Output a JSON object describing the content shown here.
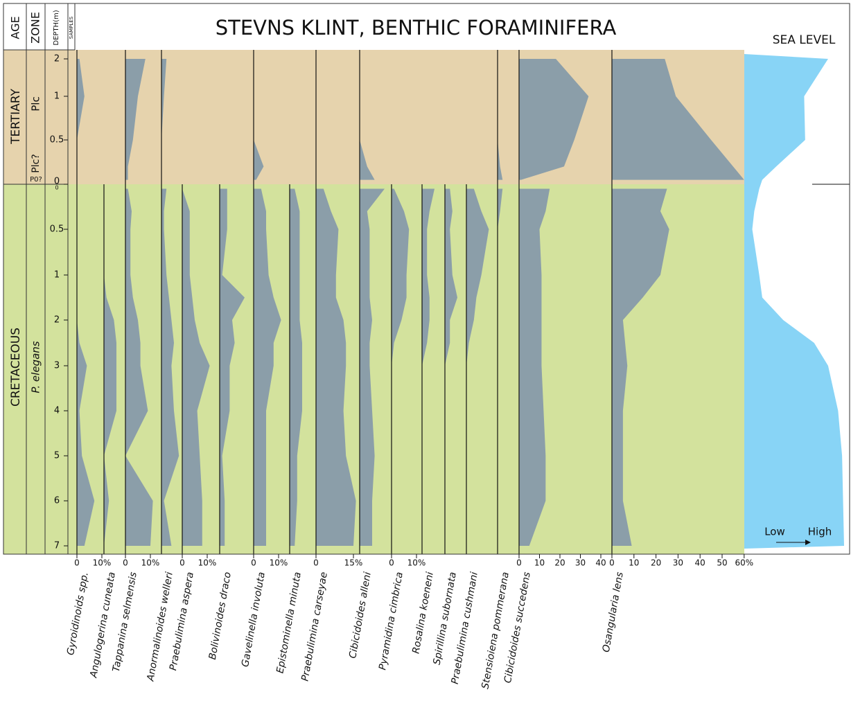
{
  "chart_data": {
    "type": "range_chart",
    "title": "STEVNS KLINT, BENTHIC FORAMINIFERA",
    "headers": {
      "age": "AGE",
      "zone": "ZONE",
      "depth": "DEPTH(m)",
      "samples": "SAMPLES"
    },
    "ages": [
      "TERTIARY",
      "CRETACEOUS"
    ],
    "zones": [
      "Plc",
      "Plc?",
      "P0?",
      "P. elegans"
    ],
    "colors": {
      "tertiary": "#e6d3ad",
      "cretaceous": "#d3e29d",
      "taxa": "#8b9ea9",
      "sea_level": "#88d4f6"
    },
    "tertiary": {
      "yticks": [
        2,
        1,
        0.5,
        0
      ],
      "samples": [
        2,
        1,
        0.5,
        0.2,
        0.05
      ]
    },
    "cretaceous": {
      "yticks": [
        0,
        0.5,
        1,
        2,
        3,
        4,
        5,
        6,
        7
      ],
      "samples": [
        0.05,
        0.3,
        0.5,
        1,
        1.5,
        2,
        2.5,
        3,
        4,
        5,
        6,
        7
      ]
    },
    "series": [
      {
        "name": "Gyroidinoids spp.",
        "tertiary_values": [
          1,
          3,
          0,
          0,
          0
        ],
        "cretaceous_values": [
          0,
          0,
          0,
          0,
          0,
          0,
          1,
          4,
          1,
          2,
          7,
          3
        ],
        "xticks": [
          0,
          {
            "value": 10,
            "label": "10%"
          }
        ]
      },
      {
        "name": "Angulogerina cuneata",
        "cretaceous_values": [
          0,
          0,
          0,
          0,
          1,
          4,
          5,
          5,
          5,
          0,
          2,
          0
        ]
      },
      {
        "name": "Tappanina selmensis",
        "tertiary_values": [
          8,
          5,
          3,
          1,
          1
        ],
        "cretaceous_values": [
          1,
          2.5,
          2,
          2,
          3,
          5,
          6,
          6,
          9,
          0,
          11,
          10
        ],
        "xticks": [
          0,
          {
            "value": 10,
            "label": "10%"
          }
        ]
      },
      {
        "name": "Anormalinoides welleri",
        "tertiary_values": [
          2,
          1,
          0,
          0,
          0
        ],
        "cretaceous_values": [
          2,
          1,
          1,
          2,
          3,
          4,
          5,
          4,
          5,
          7,
          1,
          4
        ]
      },
      {
        "name": "Praebulimina aspera",
        "cretaceous_values": [
          0,
          3,
          3,
          3,
          4,
          5,
          7,
          11,
          6,
          7,
          8,
          8
        ],
        "xticks": [
          0,
          {
            "value": 10,
            "label": "10%"
          }
        ]
      },
      {
        "name": "Bolivinoides draco",
        "cretaceous_values": [
          3,
          3,
          3,
          1,
          10,
          5,
          6,
          4,
          4,
          1,
          2,
          2
        ]
      },
      {
        "name": "Gavelinella involuta",
        "tertiary_values": [
          0,
          0,
          0,
          4,
          1
        ],
        "cretaceous_values": [
          3,
          5,
          5,
          6,
          8,
          11,
          8,
          8,
          5,
          5,
          5,
          5
        ],
        "xticks": [
          0,
          {
            "value": 10,
            "label": "10%"
          }
        ]
      },
      {
        "name": "Epistominella minuta",
        "cretaceous_values": [
          2,
          4,
          4,
          4,
          4,
          4,
          5,
          5,
          5,
          3,
          3,
          2
        ]
      },
      {
        "name": "Praebulimina carseyae",
        "tertiary_values": [
          0,
          0,
          0,
          0,
          0
        ],
        "cretaceous_values": [
          3,
          6,
          9,
          8,
          8,
          11,
          12,
          12,
          11,
          12,
          16,
          15
        ],
        "xticks": [
          0,
          {
            "value": 15,
            "label": "15%"
          }
        ]
      },
      {
        "name": "Cibicidoides alleni",
        "tertiary_values": [
          0,
          0,
          0,
          3,
          6
        ],
        "cretaceous_values": [
          10,
          3,
          4,
          4,
          4,
          5,
          4,
          4,
          5,
          6,
          5,
          5
        ]
      },
      {
        "name": "Pyramidina cimbrica",
        "cretaceous_values": [
          1,
          5,
          7,
          6,
          6,
          4,
          1,
          0,
          0,
          0,
          0,
          0
        ],
        "xticks": [
          0,
          {
            "value": 10,
            "label": "10%"
          }
        ]
      },
      {
        "name": "Rosalina koeneni",
        "cretaceous_values": [
          5,
          3,
          2,
          2,
          3,
          3,
          2,
          0,
          0,
          0,
          0,
          0
        ]
      },
      {
        "name": "Spirillina subornata",
        "cretaceous_values": [
          2,
          3,
          2,
          3,
          5,
          2,
          2,
          0,
          0,
          0,
          0,
          0
        ]
      },
      {
        "name": "Praebulimina cushmani",
        "cretaceous_values": [
          3,
          6,
          9,
          6,
          4,
          3,
          1,
          0,
          0,
          0,
          0,
          0
        ]
      },
      {
        "name": "Stensioiena pommerana",
        "tertiary_values": [
          0,
          0,
          0,
          1,
          2
        ],
        "cretaceous_values": [
          2,
          1,
          0,
          0,
          0,
          0,
          0,
          0,
          0,
          0,
          0,
          0
        ]
      },
      {
        "name": "Cibicidoides succedens",
        "tertiary_values": [
          18,
          34,
          27,
          22,
          1
        ],
        "cretaceous_values": [
          15,
          13,
          10,
          11,
          11,
          11,
          11,
          11,
          12,
          13,
          13,
          5
        ],
        "xticks": [
          0,
          10,
          20,
          30,
          40
        ]
      },
      {
        "name": "Osangularia lens",
        "tertiary_values": [
          24,
          29,
          45,
          55,
          60
        ],
        "cretaceous_values": [
          25,
          22,
          26,
          22,
          14,
          5,
          6,
          7,
          5,
          5,
          5,
          9
        ],
        "xticks": [
          0,
          10,
          20,
          30,
          40,
          50,
          {
            "value": 60,
            "label": "60%"
          }
        ]
      }
    ],
    "sea_level": {
      "title": "SEA LEVEL",
      "low": "Low",
      "high": "High",
      "tertiary_values": [
        84,
        60,
        61,
        32,
        18
      ],
      "cretaceous_values": [
        15,
        10,
        8,
        15,
        18,
        39,
        70,
        84,
        94,
        98,
        99,
        100
      ]
    }
  }
}
